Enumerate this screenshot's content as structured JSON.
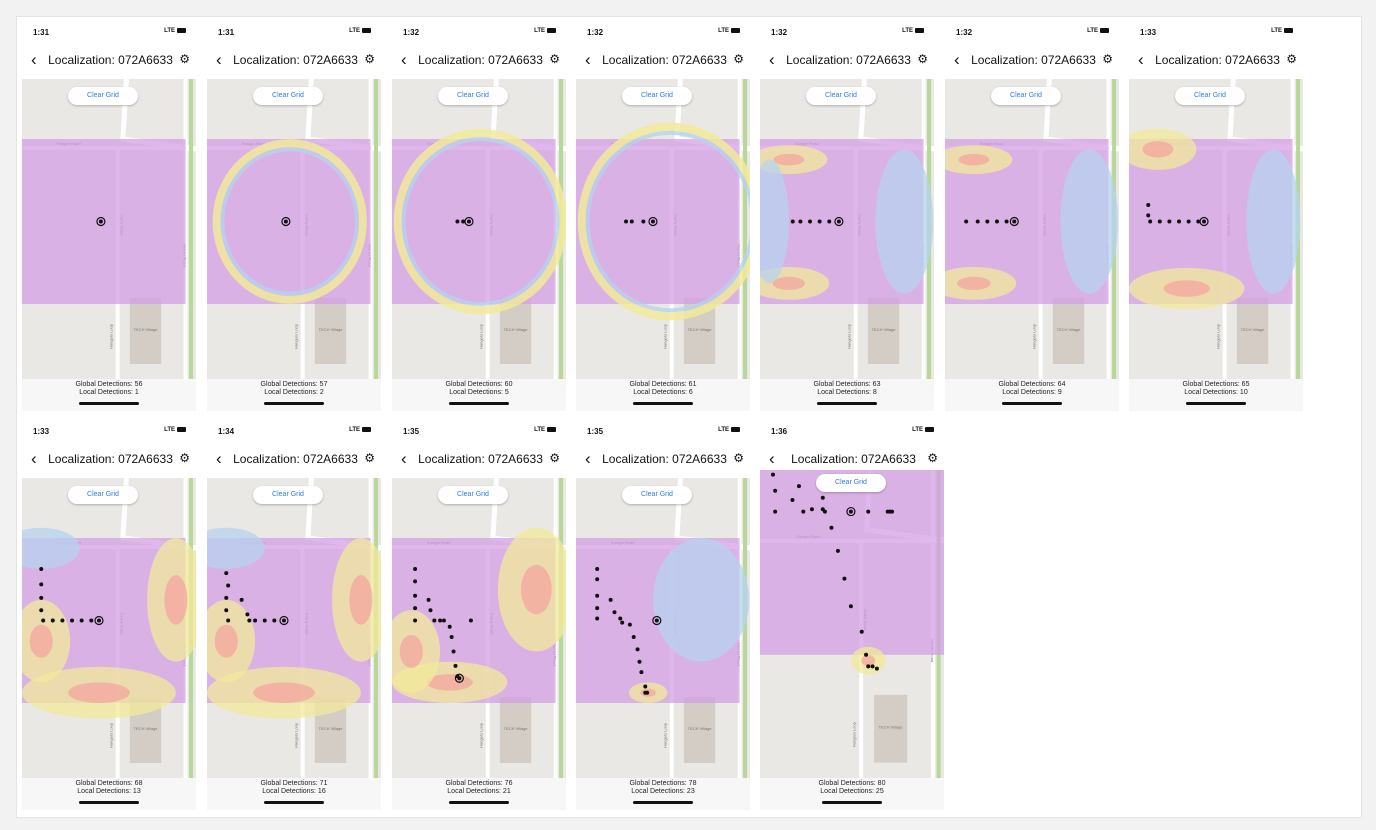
{
  "nav": {
    "back_glyph": "‹",
    "gear_glyph": "⚙"
  },
  "status_bar": {
    "network": "LTE"
  },
  "colors": {
    "accent": "#2a7ee8",
    "heat_base": "#d49be4",
    "heat_mid": "#b5d3ee",
    "heat_warm": "#f1ea9a",
    "heat_hot": "#f5a39d",
    "marker": "#111111"
  },
  "map_labels": {
    "ranger_road": "Ranger Road",
    "cerny_road": "Cerny Road",
    "harriet_road": "Harriet Road",
    "hangars_loop": "Hangars Loop",
    "tech_village": "TECH Village"
  },
  "screens": [
    {
      "time": "1:31",
      "title": "Localization: 072A6633",
      "clear_label": "Clear Grid",
      "global_text": "Global Detections: 56",
      "local_text": "Local Detections: 1",
      "global_detections": 56,
      "local_detections": 1
    },
    {
      "time": "1:31",
      "title": "Localization: 072A6633",
      "clear_label": "Clear Grid",
      "global_text": "Global Detections: 57",
      "local_text": "Local Detections: 2",
      "global_detections": 57,
      "local_detections": 2
    },
    {
      "time": "1:32",
      "title": "Localization: 072A6633",
      "clear_label": "Clear Grid",
      "global_text": "Global Detections: 60",
      "local_text": "Local Detections: 5",
      "global_detections": 60,
      "local_detections": 5
    },
    {
      "time": "1:32",
      "title": "Localization: 072A6633",
      "clear_label": "Clear Grid",
      "global_text": "Global Detections: 61",
      "local_text": "Local Detections: 6",
      "global_detections": 61,
      "local_detections": 6
    },
    {
      "time": "1:32",
      "title": "Localization: 072A6633",
      "clear_label": "Clear Grid",
      "global_text": "Global Detections: 63",
      "local_text": "Local Detections: 8",
      "global_detections": 63,
      "local_detections": 8
    },
    {
      "time": "1:32",
      "title": "Localization: 072A6633",
      "clear_label": "Clear Grid",
      "global_text": "Global Detections: 64",
      "local_text": "Local Detections: 9",
      "global_detections": 64,
      "local_detections": 9
    },
    {
      "time": "1:33",
      "title": "Localization: 072A6633",
      "clear_label": "Clear Grid",
      "global_text": "Global Detections: 65",
      "local_text": "Local Detections: 10",
      "global_detections": 65,
      "local_detections": 10
    },
    {
      "time": "1:33",
      "title": "Localization: 072A6633",
      "clear_label": "Clear Grid",
      "global_text": "Global Detections: 68",
      "local_text": "Local Detections: 13",
      "global_detections": 68,
      "local_detections": 13
    },
    {
      "time": "1:34",
      "title": "Localization: 072A6633",
      "clear_label": "Clear Grid",
      "global_text": "Global Detections: 71",
      "local_text": "Local Detections: 16",
      "global_detections": 71,
      "local_detections": 16
    },
    {
      "time": "1:35",
      "title": "Localization: 072A6633",
      "clear_label": "Clear Grid",
      "global_text": "Global Detections: 76",
      "local_text": "Local Detections: 21",
      "global_detections": 76,
      "local_detections": 21
    },
    {
      "time": "1:35",
      "title": "Localization: 072A6633",
      "clear_label": "Clear Grid",
      "global_text": "Global Detections: 78",
      "local_text": "Local Detections: 23",
      "global_detections": 78,
      "local_detections": 23
    },
    {
      "time": "1:36",
      "title": "Localization: 072A6633",
      "clear_label": "Clear Grid",
      "global_text": "Global Detections: 80",
      "local_text": "Local Detections: 25",
      "global_detections": 80,
      "local_detections": 25
    }
  ]
}
